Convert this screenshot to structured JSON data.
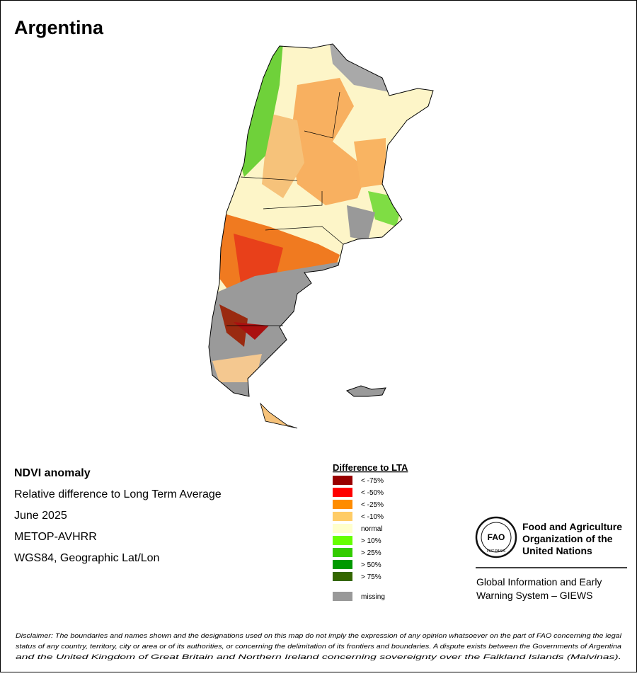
{
  "title": "Argentina",
  "info": [
    "NDVI anomaly",
    "Relative difference to Long Term Average",
    "June 2025",
    "METOP-AVHRR",
    "WGS84, Geographic Lat/Lon"
  ],
  "legend": {
    "title": "Difference to LTA",
    "items": [
      {
        "label": "< -75%",
        "color": "#990000"
      },
      {
        "label": "< -50%",
        "color": "#ff0000"
      },
      {
        "label": "< -25%",
        "color": "#ff8c00"
      },
      {
        "label": "< -10%",
        "color": "#ffcc66"
      },
      {
        "label": "normal",
        "color": "#ffffcc"
      },
      {
        "label": "> 10%",
        "color": "#66ff00"
      },
      {
        "label": "> 25%",
        "color": "#33cc00"
      },
      {
        "label": "> 50%",
        "color": "#009900"
      },
      {
        "label": "> 75%",
        "color": "#336600"
      }
    ],
    "missing": {
      "label": "missing",
      "color": "#999999"
    }
  },
  "logo": {
    "letters": "FAO",
    "motto": "FIAT PANIS",
    "name": [
      "Food and Agriculture",
      "Organization of the",
      "United Nations"
    ]
  },
  "giews": [
    "Global Information and Early",
    "Warning System – GIEWS"
  ],
  "disclaimer": [
    "Disclaimer: The boundaries and names shown and the designations used on this map do not imply the expression of any opinion whatsoever on the part of FAO concerning the legal",
    "status of any country, territory, city or area or of its authorities, or concerning the delimitation of its frontiers and boundaries. A dispute exists between the Governments of Argentina",
    "and the United Kingdom of Great Britain and Northern Ireland concerning sovereignty over the Falkland Islands (Malvinas)."
  ]
}
